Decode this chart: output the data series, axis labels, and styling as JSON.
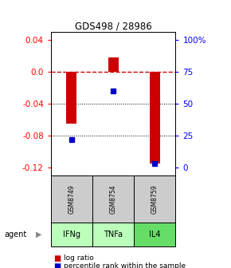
{
  "title": "GDS498 / 28986",
  "samples": [
    "GSM8749",
    "GSM8754",
    "GSM8759"
  ],
  "agents": [
    "IFNg",
    "TNFa",
    "IL4"
  ],
  "log_ratios": [
    -0.065,
    0.018,
    -0.115
  ],
  "percentile_ranks": [
    22,
    60,
    3
  ],
  "ylim": [
    -0.13,
    0.05
  ],
  "yticks_left": [
    0.04,
    0.0,
    -0.04,
    -0.08,
    -0.12
  ],
  "yticks_right_labels": [
    "100%",
    "75",
    "50",
    "25",
    "0"
  ],
  "yticks_right_yvals": [
    0.04,
    0.0,
    -0.04,
    -0.08,
    -0.12
  ],
  "bar_color": "#cc0000",
  "dot_color": "#0000cc",
  "agent_colors": [
    "#bbffbb",
    "#bbffbb",
    "#66ee66"
  ],
  "sample_bg": "#cccccc",
  "legend_bar_color": "#cc0000",
  "legend_dot_color": "#0000cc",
  "bar_width": 0.25
}
